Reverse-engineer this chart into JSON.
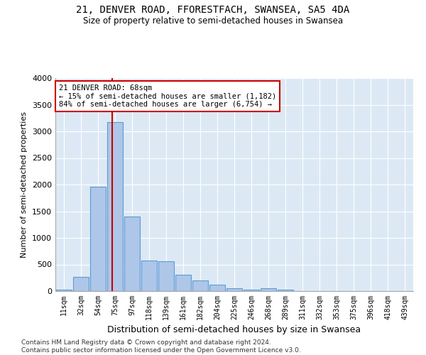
{
  "title1": "21, DENVER ROAD, FFORESTFACH, SWANSEA, SA5 4DA",
  "title2": "Size of property relative to semi-detached houses in Swansea",
  "xlabel": "Distribution of semi-detached houses by size in Swansea",
  "ylabel": "Number of semi-detached properties",
  "footnote": "Contains HM Land Registry data © Crown copyright and database right 2024.\nContains public sector information licensed under the Open Government Licence v3.0.",
  "bar_color": "#aec6e8",
  "bar_edge_color": "#5b9bd5",
  "bg_color": "#dce9f5",
  "annotation_box_color": "#cc0000",
  "vline_color": "#cc0000",
  "categories": [
    "11sqm",
    "32sqm",
    "54sqm",
    "75sqm",
    "97sqm",
    "118sqm",
    "139sqm",
    "161sqm",
    "182sqm",
    "204sqm",
    "225sqm",
    "246sqm",
    "268sqm",
    "289sqm",
    "311sqm",
    "332sqm",
    "353sqm",
    "375sqm",
    "396sqm",
    "418sqm",
    "439sqm"
  ],
  "values": [
    30,
    270,
    1960,
    3170,
    1400,
    570,
    560,
    310,
    200,
    120,
    50,
    30,
    50,
    25,
    0,
    0,
    0,
    0,
    0,
    0,
    0
  ],
  "ylim": [
    0,
    4000
  ],
  "yticks": [
    0,
    500,
    1000,
    1500,
    2000,
    2500,
    3000,
    3500,
    4000
  ],
  "vline_x_idx": 2.85,
  "annotation_text_line1": "21 DENVER ROAD: 68sqm",
  "annotation_text_line2": "← 15% of semi-detached houses are smaller (1,182)",
  "annotation_text_line3": "84% of semi-detached houses are larger (6,754) →"
}
